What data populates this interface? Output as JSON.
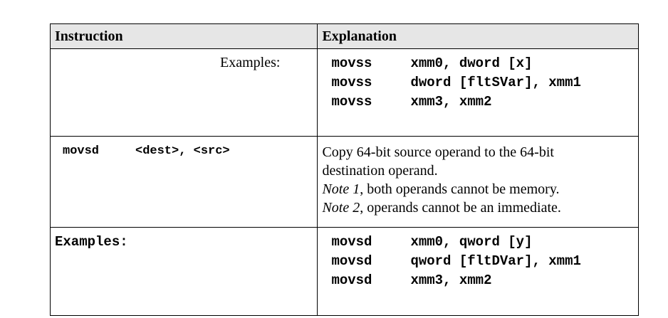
{
  "table": {
    "headers": {
      "instruction": "Instruction",
      "explanation": "Explanation"
    },
    "rows": {
      "examples_movss": {
        "label": "Examples:",
        "code": [
          {
            "mnemonic": "movss",
            "operands": "xmm0, dword [x]"
          },
          {
            "mnemonic": "movss",
            "operands": "dword [fltSVar], xmm1"
          },
          {
            "mnemonic": "movss",
            "operands": "xmm3, xmm2"
          }
        ]
      },
      "movsd": {
        "mnemonic": "movsd",
        "operands": "<dest>, <src>",
        "explanation": {
          "line1": "Copy 64-bit source operand to the 64-bit",
          "line2": "destination operand.",
          "note1_label": "Note 1",
          "note1_text": ", both operands cannot be memory.",
          "note2_label": "Note 2",
          "note2_text": ", operands cannot be an immediate."
        }
      },
      "examples_movsd": {
        "label": "Examples:",
        "code": [
          {
            "mnemonic": "movsd",
            "operands": "xmm0, qword [y]"
          },
          {
            "mnemonic": "movsd",
            "operands": "qword [fltDVar], xmm1"
          },
          {
            "mnemonic": "movsd",
            "operands": "xmm3, xmm2"
          }
        ]
      }
    }
  }
}
